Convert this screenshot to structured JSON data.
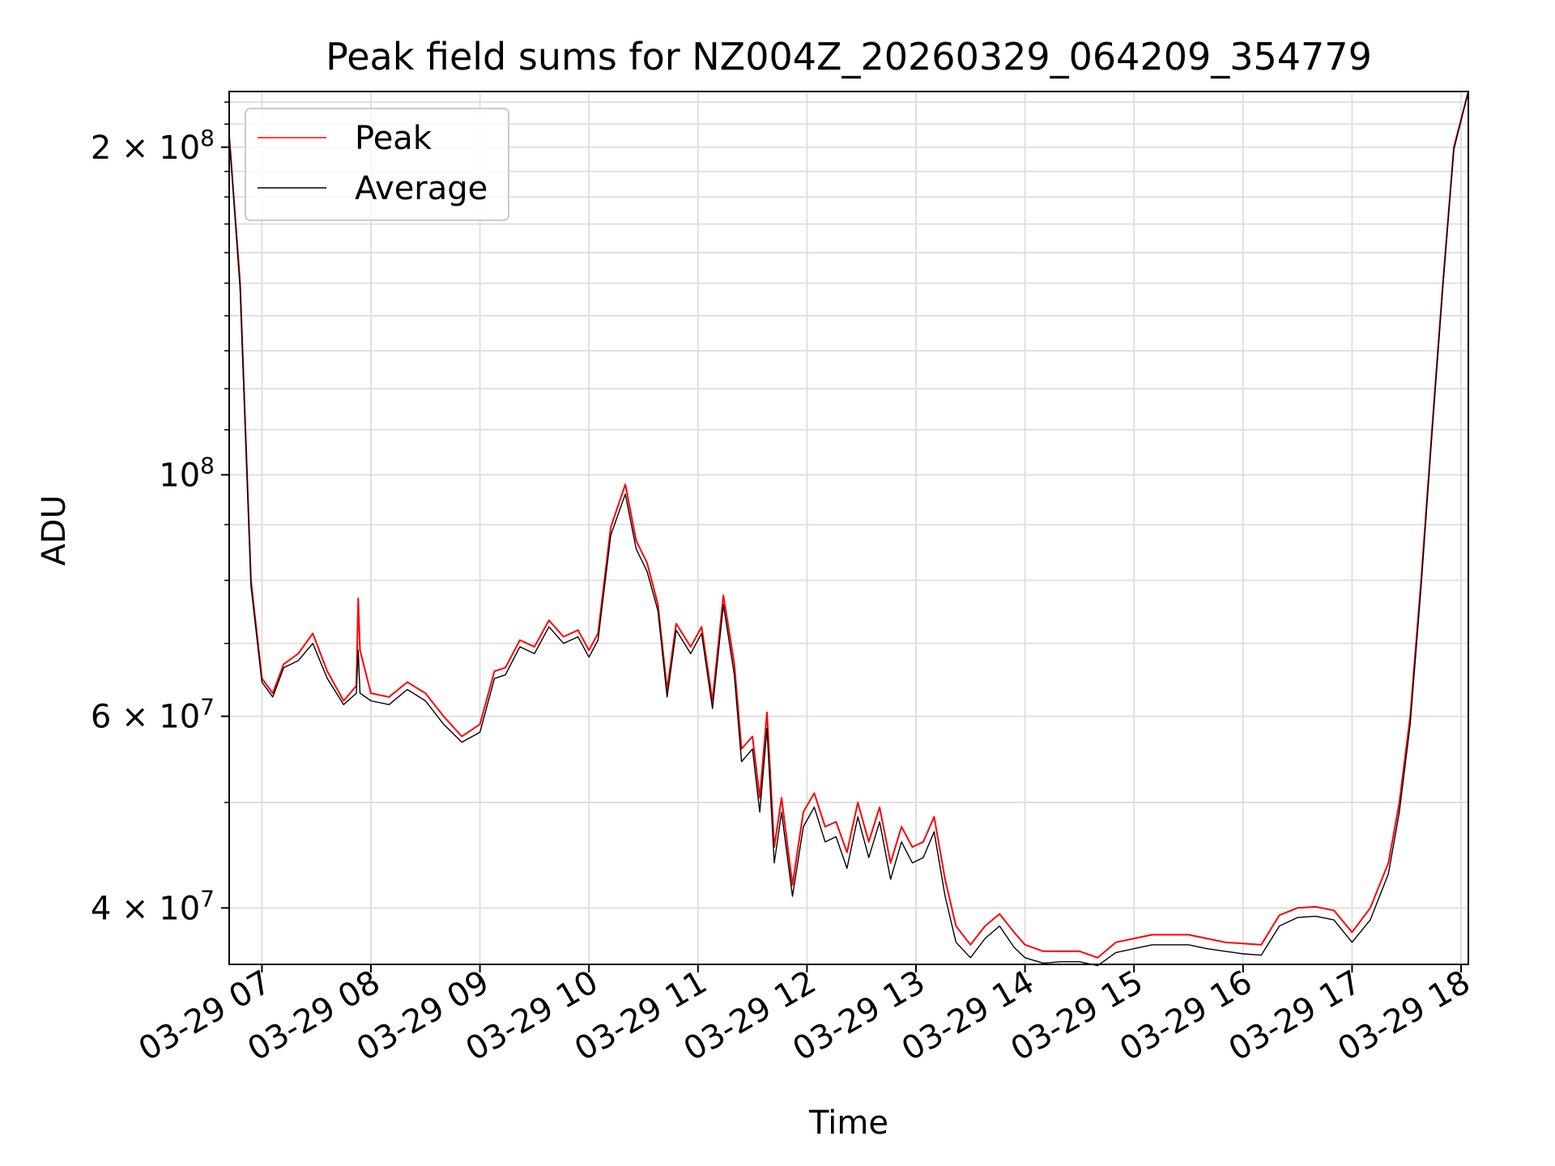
{
  "chart_data": {
    "type": "line",
    "title": "Peak field sums for NZ004Z_20260329_064209_354779",
    "xlabel": "Time",
    "ylabel": "ADU",
    "x_scale": "time",
    "y_scale": "log",
    "xlim": [
      "03-29 06:42",
      "03-29 18:04"
    ],
    "ylim": [
      35500000,
      225000000
    ],
    "x_ticks": [
      "03-29 07",
      "03-29 08",
      "03-29 09",
      "03-29 10",
      "03-29 11",
      "03-29 12",
      "03-29 13",
      "03-29 14",
      "03-29 15",
      "03-29 16",
      "03-29 17",
      "03-29 18"
    ],
    "y_ticks": [
      {
        "value": 40000000,
        "label_base": "4 × 10",
        "label_exp": "7"
      },
      {
        "value": 60000000,
        "label_base": "6 × 10",
        "label_exp": "7"
      },
      {
        "value": 100000000,
        "label_base": "10",
        "label_exp": "8"
      },
      {
        "value": 200000000,
        "label_base": "2 × 10",
        "label_exp": "8"
      }
    ],
    "grid": true,
    "legend_position": "upper-left",
    "x": [
      "06:42",
      "06:48",
      "06:54",
      "07:00",
      "07:06",
      "07:12",
      "07:20",
      "07:28",
      "07:36",
      "07:45",
      "07:52",
      "07:53",
      "07:54",
      "08:00",
      "08:10",
      "08:20",
      "08:30",
      "08:40",
      "08:50",
      "09:00",
      "09:08",
      "09:14",
      "09:22",
      "09:30",
      "09:38",
      "09:46",
      "09:54",
      "10:00",
      "10:05",
      "10:12",
      "10:20",
      "10:26",
      "10:32",
      "10:38",
      "10:43",
      "10:48",
      "10:56",
      "11:02",
      "11:08",
      "11:14",
      "11:20",
      "11:24",
      "11:30",
      "11:34",
      "11:38",
      "11:42",
      "11:46",
      "11:52",
      "11:58",
      "12:04",
      "12:10",
      "12:16",
      "12:22",
      "12:28",
      "12:34",
      "12:40",
      "12:46",
      "12:52",
      "12:58",
      "13:04",
      "13:10",
      "13:16",
      "13:22",
      "13:30",
      "13:38",
      "13:46",
      "13:54",
      "14:00",
      "14:10",
      "14:20",
      "14:30",
      "14:40",
      "14:50",
      "15:00",
      "15:10",
      "15:20",
      "15:30",
      "15:40",
      "15:50",
      "16:00",
      "16:10",
      "16:20",
      "16:30",
      "16:40",
      "16:50",
      "17:00",
      "17:10",
      "17:20",
      "17:26",
      "17:32",
      "17:38",
      "17:44",
      "17:50",
      "17:56",
      "18:04"
    ],
    "series": [
      {
        "name": "Peak",
        "color": "#ff0000",
        "values": [
          205000000,
          150000000,
          80000000,
          65000000,
          63000000,
          67000000,
          68500000,
          71500000,
          66000000,
          62000000,
          64000000,
          77000000,
          69000000,
          63000000,
          62500000,
          64500000,
          63000000,
          60000000,
          57500000,
          59000000,
          66000000,
          66500000,
          70500000,
          69500000,
          73500000,
          71000000,
          72000000,
          69000000,
          71500000,
          89500000,
          98000000,
          87000000,
          83000000,
          76000000,
          63500000,
          73000000,
          69500000,
          72500000,
          62000000,
          77500000,
          67000000,
          56000000,
          57500000,
          50500000,
          60500000,
          45500000,
          50500000,
          42000000,
          49000000,
          51000000,
          47500000,
          48000000,
          45000000,
          50000000,
          46000000,
          49500000,
          44000000,
          47500000,
          45500000,
          46000000,
          48500000,
          42500000,
          38500000,
          37000000,
          38500000,
          39500000,
          38000000,
          37000000,
          36500000,
          36500000,
          36500000,
          36000000,
          37200000,
          37500000,
          37800000,
          37800000,
          37800000,
          37500000,
          37200000,
          37100000,
          37000000,
          39400000,
          40000000,
          40100000,
          39800000,
          38000000,
          40000000,
          44000000,
          50000000,
          60000000,
          80000000,
          110000000,
          150000000,
          200000000,
          225000000
        ]
      },
      {
        "name": "Average",
        "color": "#000000",
        "values": [
          205000000,
          148000000,
          79000000,
          64500000,
          62500000,
          66500000,
          67500000,
          70000000,
          65000000,
          61500000,
          63000000,
          69000000,
          63000000,
          62000000,
          61500000,
          63500000,
          62000000,
          59000000,
          56800000,
          58000000,
          65000000,
          65500000,
          69500000,
          68500000,
          72500000,
          70000000,
          71000000,
          68000000,
          70500000,
          88000000,
          96000000,
          85500000,
          81500000,
          75000000,
          62500000,
          72000000,
          68500000,
          71500000,
          61000000,
          76000000,
          65500000,
          54500000,
          56000000,
          49000000,
          58500000,
          44000000,
          49000000,
          41000000,
          47500000,
          49500000,
          46000000,
          46500000,
          43500000,
          48500000,
          44500000,
          48000000,
          42500000,
          46000000,
          44000000,
          44500000,
          47000000,
          41000000,
          37200000,
          36000000,
          37500000,
          38500000,
          36800000,
          36000000,
          35600000,
          35700000,
          35700000,
          35400000,
          36400000,
          36700000,
          37000000,
          37000000,
          37000000,
          36700000,
          36500000,
          36300000,
          36200000,
          38500000,
          39200000,
          39300000,
          39000000,
          37200000,
          39000000,
          43000000,
          49000000,
          59000000,
          79000000,
          109000000,
          149000000,
          199000000,
          225000000
        ]
      }
    ]
  }
}
